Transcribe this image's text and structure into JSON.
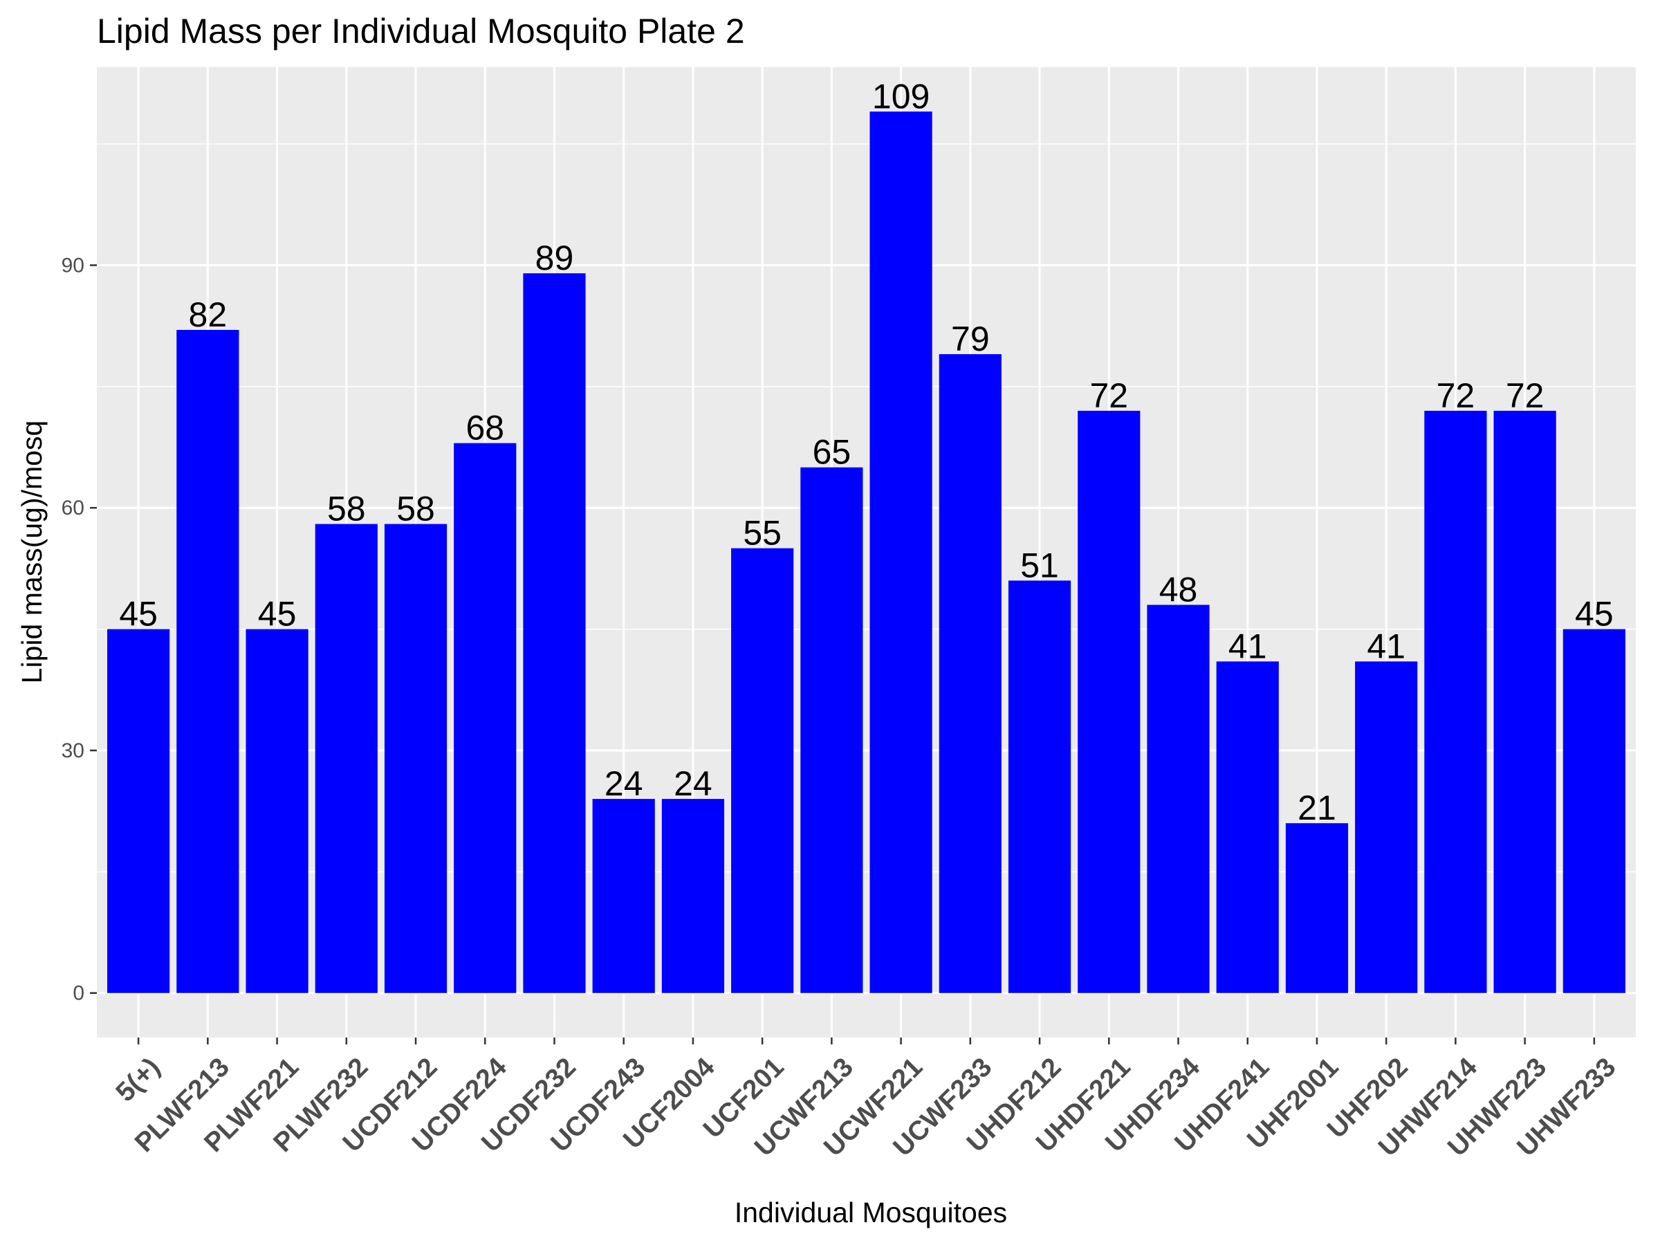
{
  "chart_data": {
    "type": "bar",
    "title": "Lipid Mass per Individual Mosquito Plate 2",
    "xlabel": "Individual Mosquitoes",
    "ylabel": "Lipid mass(ug)/mosq",
    "categories": [
      "5(+)",
      "PLWF213",
      "PLWF221",
      "PLWF232",
      "UCDF212",
      "UCDF224",
      "UCDF232",
      "UCDF243",
      "UCF2004",
      "UCF201",
      "UCWF213",
      "UCWF221",
      "UCWF233",
      "UHDF212",
      "UHDF221",
      "UHDF234",
      "UHDF241",
      "UHF2001",
      "UHF202",
      "UHWF214",
      "UHWF223",
      "UHWF233"
    ],
    "values": [
      45,
      82,
      45,
      58,
      58,
      68,
      89,
      24,
      24,
      55,
      65,
      109,
      79,
      51,
      72,
      48,
      41,
      21,
      41,
      72,
      72,
      45
    ],
    "data_labels": [
      "45",
      "82",
      "45",
      "58",
      "58",
      "68",
      "89",
      "24",
      "24",
      "55",
      "65",
      "109",
      "79",
      "51",
      "72",
      "48",
      "41",
      "21",
      "41",
      "72",
      "72",
      "45"
    ],
    "yticks": [
      0,
      30,
      60,
      90
    ],
    "ytick_labels": [
      "0",
      "30",
      "60",
      "90"
    ],
    "ylim": [
      -5.5,
      114.5
    ],
    "grid": true,
    "colors": {
      "bar": "#0000ff",
      "panel": "#ebebeb",
      "grid": "#ffffff",
      "axis_text": "#4d4d4d",
      "text": "#000000"
    }
  }
}
